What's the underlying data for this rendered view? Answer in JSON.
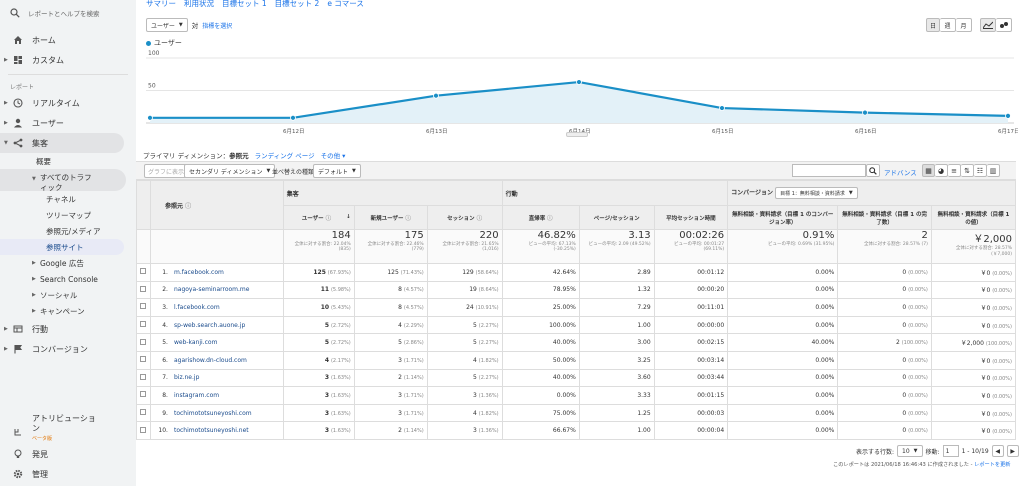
{
  "sidebar": {
    "search_placeholder": "レポートとヘルプを検索",
    "home": "ホーム",
    "custom": "カスタム",
    "report_section": "レポート",
    "realtime": "リアルタイム",
    "user": "ユーザー",
    "acquisition": "集客",
    "overview": "概要",
    "all_traffic": "すべてのトラフィック",
    "channel": "チャネル",
    "treemap": "ツリーマップ",
    "source_medium": "参照元/メディア",
    "referrals": "参照サイト",
    "google_ads": "Google 広告",
    "search_console": "Search Console",
    "social": "ソーシャル",
    "campaign": "キャンペーン",
    "behavior": "行動",
    "conversion": "コンバージョン",
    "attribution": "アトリビューション",
    "beta": "ベータ版",
    "discover": "発見",
    "admin": "管理"
  },
  "top_tabs": [
    "サマリー",
    "利用状況",
    "目標セット 1",
    "目標セット 2",
    "e コマース"
  ],
  "metric_select": "ユーザー",
  "vs_label": "対",
  "select_metric_link": "指標を選択",
  "period_buttons": [
    "日",
    "週",
    "月"
  ],
  "chart_data": {
    "type": "area",
    "series": [
      {
        "name": "ユーザー",
        "values": [
          8,
          8,
          42,
          63,
          23,
          16,
          11
        ]
      }
    ],
    "categories": [
      "",
      "6月12日",
      "6月13日",
      "6月14日",
      "6月15日",
      "6月16日",
      "6月17日"
    ],
    "yticks": [
      "100",
      "50"
    ],
    "ylim": [
      0,
      100
    ],
    "color": "#1a8fc7"
  },
  "primary_dimension": {
    "label": "プライマリ ディメンション：",
    "current": "参照元",
    "options": [
      "ランディング ページ",
      "その他"
    ]
  },
  "toolbar": {
    "plot_rows": "グラフに表示",
    "secondary_dimension": "セカンダリ ディメンション",
    "sort_type_label": "並べ替えの種類：",
    "sort_default": "デフォルト",
    "advanced": "アドバンス"
  },
  "table": {
    "col_source": "参照元",
    "group_acquisition": "集客",
    "group_behavior": "行動",
    "group_conversion": "コンバージョン",
    "goal_select": "目標 1：無料相談・資料請求",
    "columns": [
      "ユーザー",
      "新規ユーザー",
      "セッション",
      "直帰率",
      "ページ/セッション",
      "平均セッション時間",
      "無料相談・資料請求（目標 1 のコンバージョン率）",
      "無料相談・資料請求（目標 1 の完了数）",
      "無料相談・資料請求（目標 1 の値）"
    ],
    "totals": [
      {
        "v": "184",
        "s": "全体に対する割合: 22.04% (835)"
      },
      {
        "v": "175",
        "s": "全体に対する割合: 22.46% (779)"
      },
      {
        "v": "220",
        "s": "全体に対する割合: 21.65% (1,016)"
      },
      {
        "v": "46.82%",
        "s": "ビューの平均: 67.13% (-30.25%)"
      },
      {
        "v": "3.13",
        "s": "ビューの平均: 2.09 (49.52%)"
      },
      {
        "v": "00:02:26",
        "s": "ビューの平均: 00:01:27 (69.11%)"
      },
      {
        "v": "0.91%",
        "s": "ビューの平均: 0.69% (31.95%)"
      },
      {
        "v": "2",
        "s": "全体に対する割合: 28.57% (7)"
      },
      {
        "v": "￥2,000",
        "s": "全体に対する割合: 28.57% (￥7,000)"
      }
    ],
    "rows": [
      {
        "n": "1.",
        "src": "m.facebook.com",
        "users": "125",
        "up": "(67.93%)",
        "newu": "125",
        "np": "(71.43%)",
        "sess": "129",
        "sp": "(58.64%)",
        "bounce": "42.64%",
        "pps": "2.89",
        "dur": "00:01:12",
        "cvr": "0.00%",
        "comp": "0",
        "cp": "(0.00%)",
        "val": "￥0",
        "vp": "(0.00%)"
      },
      {
        "n": "2.",
        "src": "nagoya-seminarroom.me",
        "users": "11",
        "up": "(5.98%)",
        "newu": "8",
        "np": "(4.57%)",
        "sess": "19",
        "sp": "(8.64%)",
        "bounce": "78.95%",
        "pps": "1.32",
        "dur": "00:00:20",
        "cvr": "0.00%",
        "comp": "0",
        "cp": "(0.00%)",
        "val": "￥0",
        "vp": "(0.00%)"
      },
      {
        "n": "3.",
        "src": "l.facebook.com",
        "users": "10",
        "up": "(5.43%)",
        "newu": "8",
        "np": "(4.57%)",
        "sess": "24",
        "sp": "(10.91%)",
        "bounce": "25.00%",
        "pps": "7.29",
        "dur": "00:11:01",
        "cvr": "0.00%",
        "comp": "0",
        "cp": "(0.00%)",
        "val": "￥0",
        "vp": "(0.00%)"
      },
      {
        "n": "4.",
        "src": "sp-web.search.auone.jp",
        "users": "5",
        "up": "(2.72%)",
        "newu": "4",
        "np": "(2.29%)",
        "sess": "5",
        "sp": "(2.27%)",
        "bounce": "100.00%",
        "pps": "1.00",
        "dur": "00:00:00",
        "cvr": "0.00%",
        "comp": "0",
        "cp": "(0.00%)",
        "val": "￥0",
        "vp": "(0.00%)"
      },
      {
        "n": "5.",
        "src": "web-kanji.com",
        "users": "5",
        "up": "(2.72%)",
        "newu": "5",
        "np": "(2.86%)",
        "sess": "5",
        "sp": "(2.27%)",
        "bounce": "40.00%",
        "pps": "3.00",
        "dur": "00:02:15",
        "cvr": "40.00%",
        "comp": "2",
        "cp": "(100.00%)",
        "val": "￥2,000",
        "vp": "(100.00%)"
      },
      {
        "n": "6.",
        "src": "agarishow.dn-cloud.com",
        "users": "4",
        "up": "(2.17%)",
        "newu": "3",
        "np": "(1.71%)",
        "sess": "4",
        "sp": "(1.82%)",
        "bounce": "50.00%",
        "pps": "3.25",
        "dur": "00:03:14",
        "cvr": "0.00%",
        "comp": "0",
        "cp": "(0.00%)",
        "val": "￥0",
        "vp": "(0.00%)"
      },
      {
        "n": "7.",
        "src": "biz.ne.jp",
        "users": "3",
        "up": "(1.63%)",
        "newu": "2",
        "np": "(1.14%)",
        "sess": "5",
        "sp": "(2.27%)",
        "bounce": "40.00%",
        "pps": "3.60",
        "dur": "00:03:44",
        "cvr": "0.00%",
        "comp": "0",
        "cp": "(0.00%)",
        "val": "￥0",
        "vp": "(0.00%)"
      },
      {
        "n": "8.",
        "src": "instagram.com",
        "users": "3",
        "up": "(1.63%)",
        "newu": "3",
        "np": "(1.71%)",
        "sess": "3",
        "sp": "(1.36%)",
        "bounce": "0.00%",
        "pps": "3.33",
        "dur": "00:01:15",
        "cvr": "0.00%",
        "comp": "0",
        "cp": "(0.00%)",
        "val": "￥0",
        "vp": "(0.00%)"
      },
      {
        "n": "9.",
        "src": "tochimototsuneyoshi.com",
        "users": "3",
        "up": "(1.63%)",
        "newu": "3",
        "np": "(1.71%)",
        "sess": "4",
        "sp": "(1.82%)",
        "bounce": "75.00%",
        "pps": "1.25",
        "dur": "00:00:03",
        "cvr": "0.00%",
        "comp": "0",
        "cp": "(0.00%)",
        "val": "￥0",
        "vp": "(0.00%)"
      },
      {
        "n": "10.",
        "src": "tochimototsuneyoshi.net",
        "users": "3",
        "up": "(1.63%)",
        "newu": "2",
        "np": "(1.14%)",
        "sess": "3",
        "sp": "(1.36%)",
        "bounce": "66.67%",
        "pps": "1.00",
        "dur": "00:00:04",
        "cvr": "0.00%",
        "comp": "0",
        "cp": "(0.00%)",
        "val": "￥0",
        "vp": "(0.00%)"
      }
    ]
  },
  "pagination": {
    "rows_label": "表示する行数:",
    "rows_value": "10",
    "goto_label": "移動:",
    "goto_value": "1",
    "range": "1 - 10/19"
  },
  "footer": {
    "created": "このレポートは 2021/06/18 16:46:43 に作成されました -",
    "refresh": "レポートを更新"
  }
}
